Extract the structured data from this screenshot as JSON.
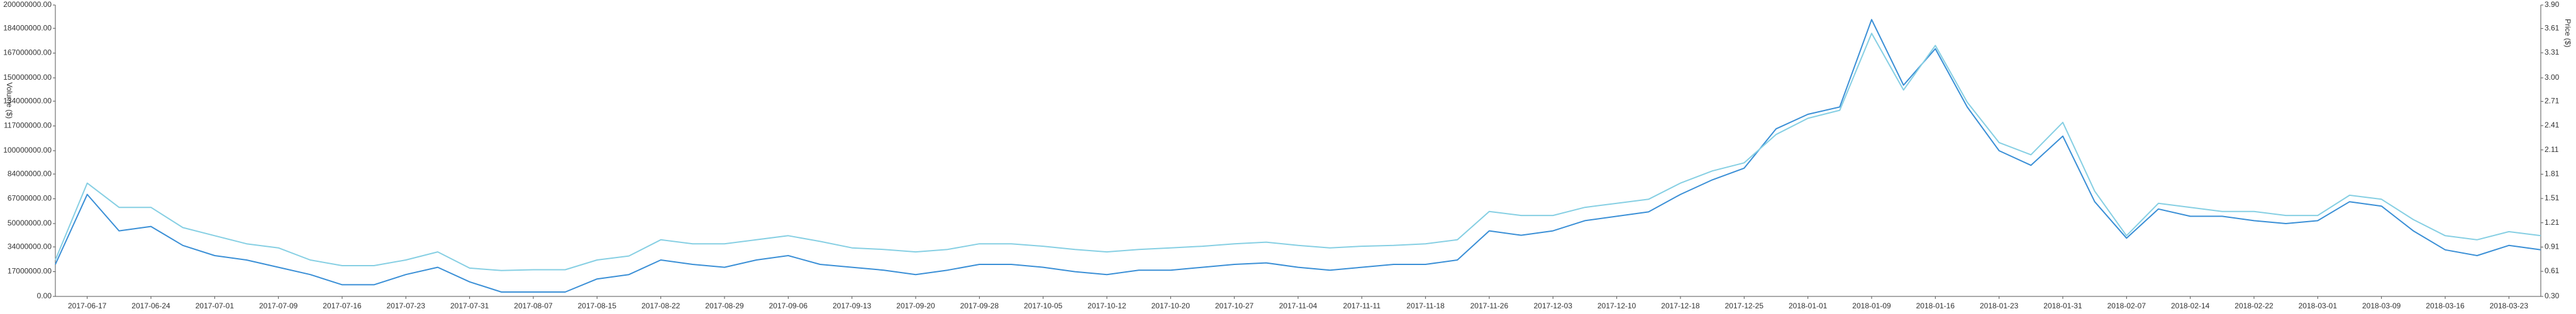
{
  "chart_data": {
    "type": "line",
    "y_label": "Volume ($)",
    "y2_label": "Price ($)",
    "categories": [
      null,
      "2017-06-17",
      null,
      "2017-06-24",
      null,
      "2017-07-01",
      null,
      "2017-07-09",
      null,
      "2017-07-16",
      null,
      "2017-07-23",
      null,
      "2017-07-31",
      null,
      "2017-08-07",
      null,
      "2017-08-15",
      null,
      "2017-08-22",
      null,
      "2017-08-29",
      null,
      "2017-09-06",
      null,
      "2017-09-13",
      null,
      "2017-09-20",
      null,
      "2017-09-28",
      null,
      "2017-10-05",
      null,
      "2017-10-12",
      null,
      "2017-10-20",
      null,
      "2017-10-27",
      null,
      "2017-11-04",
      null,
      "2017-11-11",
      null,
      "2017-11-18",
      null,
      "2017-11-26",
      null,
      "2017-12-03",
      null,
      "2017-12-10",
      null,
      "2017-12-18",
      null,
      "2017-12-25",
      null,
      "2018-01-01",
      null,
      "2018-01-09",
      null,
      "2018-01-16",
      null,
      "2018-01-23",
      null,
      "2018-01-31",
      null,
      "2018-02-07",
      null,
      "2018-02-14",
      null,
      "2018-02-22",
      null,
      "2018-03-01",
      null,
      "2018-03-09",
      null,
      "2018-03-16",
      null,
      "2018-03-23",
      null
    ],
    "series": [
      {
        "name": "Volume ($)",
        "color": "#3a8fd6",
        "axis": "y",
        "values": [
          22000000,
          70000000,
          45000000,
          48000000,
          35000000,
          28000000,
          25000000,
          20000000,
          15000000,
          8000000,
          8000000,
          15000000,
          20000000,
          10000000,
          3000000,
          3000000,
          3000000,
          12000000,
          15000000,
          25000000,
          22000000,
          20000000,
          25000000,
          28000000,
          22000000,
          20000000,
          18000000,
          15000000,
          18000000,
          22000000,
          22000000,
          20000000,
          17000000,
          15000000,
          18000000,
          18000000,
          20000000,
          22000000,
          23000000,
          20000000,
          18000000,
          20000000,
          22000000,
          22000000,
          25000000,
          45000000,
          42000000,
          45000000,
          52000000,
          55000000,
          58000000,
          70000000,
          80000000,
          88000000,
          115000000,
          125000000,
          130000000,
          190000000,
          145000000,
          170000000,
          130000000,
          100000000,
          90000000,
          110000000,
          65000000,
          40000000,
          60000000,
          55000000,
          55000000,
          52000000,
          50000000,
          52000000,
          65000000,
          62000000,
          45000000,
          32000000,
          28000000,
          35000000,
          32000000
        ]
      },
      {
        "name": "Price ($)",
        "color": "#86cfe3",
        "axis": "y2",
        "values": [
          0.75,
          1.7,
          1.4,
          1.4,
          1.15,
          1.05,
          0.95,
          0.9,
          0.75,
          0.68,
          0.68,
          0.75,
          0.85,
          0.65,
          0.62,
          0.63,
          0.63,
          0.75,
          0.8,
          1.0,
          0.95,
          0.95,
          1.0,
          1.05,
          0.98,
          0.9,
          0.88,
          0.85,
          0.88,
          0.95,
          0.95,
          0.92,
          0.88,
          0.85,
          0.88,
          0.9,
          0.92,
          0.95,
          0.97,
          0.93,
          0.9,
          0.92,
          0.93,
          0.95,
          1.0,
          1.35,
          1.3,
          1.3,
          1.4,
          1.45,
          1.5,
          1.7,
          1.85,
          1.95,
          2.3,
          2.5,
          2.6,
          3.55,
          2.85,
          3.4,
          2.7,
          2.2,
          2.05,
          2.45,
          1.6,
          1.05,
          1.45,
          1.4,
          1.35,
          1.35,
          1.3,
          1.3,
          1.55,
          1.5,
          1.25,
          1.05,
          1.0,
          1.1,
          1.05
        ]
      }
    ],
    "ylim": [
      0,
      200000000
    ],
    "yticks": [
      {
        "value": 0,
        "label": "0.00"
      },
      {
        "value": 17000000,
        "label": "17000000.00"
      },
      {
        "value": 34000000,
        "label": "34000000.00"
      },
      {
        "value": 50000000,
        "label": "50000000.00"
      },
      {
        "value": 67000000,
        "label": "67000000.00"
      },
      {
        "value": 84000000,
        "label": "84000000.00"
      },
      {
        "value": 100000000,
        "label": "100000000.00"
      },
      {
        "value": 117000000,
        "label": "117000000.00"
      },
      {
        "value": 134000000,
        "label": "134000000.00"
      },
      {
        "value": 150000000,
        "label": "150000000.00"
      },
      {
        "value": 167000000,
        "label": "167000000.00"
      },
      {
        "value": 184000000,
        "label": "184000000.00"
      },
      {
        "value": 200000000,
        "label": "200000000.00"
      }
    ],
    "y2lim": [
      0.3,
      3.9
    ],
    "y2ticks": [
      {
        "value": 0.3,
        "label": "0.30"
      },
      0.61,
      0.91,
      1.21,
      1.51,
      1.81,
      2.11,
      2.41,
      2.71,
      {
        "value": 3.0,
        "label": "3.00"
      },
      3.31,
      3.61,
      {
        "value": 3.9,
        "label": "3.90"
      }
    ],
    "grid": false
  }
}
